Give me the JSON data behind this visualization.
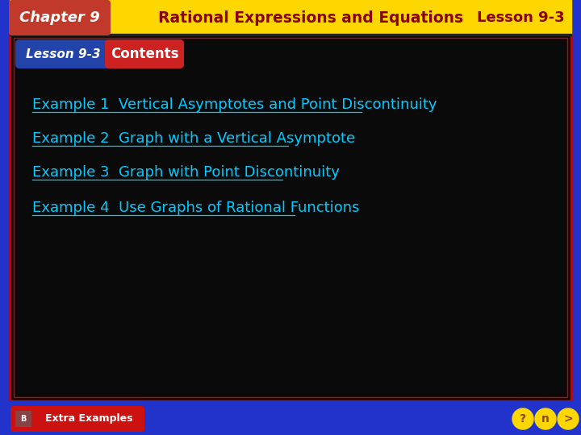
{
  "title_bar_color": "#FFD700",
  "title_bar_text": "Rational Expressions and Equations",
  "title_bar_text_color": "#8B0000",
  "chapter_bg": "#C0392B",
  "chapter_text": "Chapter 9",
  "lesson_text": "Lesson 9-3",
  "main_bg": "#0A0A0A",
  "border_outer_bg": "#2233CC",
  "lesson_badge_left_color": "#2244AA",
  "lesson_badge_text": "Lesson 9-3",
  "contents_badge_text": "Contents",
  "contents_badge_color": "#CC2222",
  "examples": [
    "Example 1  Vertical Asymptotes and Point Discontinuity",
    "Example 2  Graph with a Vertical Asymptote",
    "Example 3  Graph with Point Discontinuity",
    "Example 4  Use Graphs of Rational Functions"
  ],
  "example_text_color": "#00CCFF",
  "extra_examples_bg": "#CC1111",
  "extra_examples_text": "Extra Examples",
  "nav_color": "#FFD700",
  "nav_icon_color": "#8B4513"
}
